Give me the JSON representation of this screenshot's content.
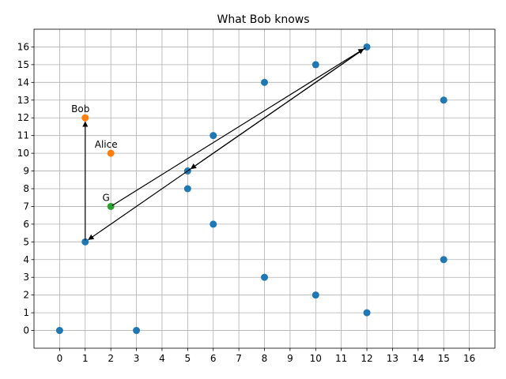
{
  "chart_data": {
    "type": "scatter",
    "title": "What Bob knows",
    "xlabel": "",
    "ylabel": "",
    "xlim": [
      -1,
      17
    ],
    "ylim": [
      -1,
      17
    ],
    "x_ticks": [
      0,
      1,
      2,
      3,
      4,
      5,
      6,
      7,
      8,
      9,
      10,
      11,
      12,
      13,
      14,
      15,
      16
    ],
    "y_ticks": [
      0,
      1,
      2,
      3,
      4,
      5,
      6,
      7,
      8,
      9,
      10,
      11,
      12,
      13,
      14,
      15,
      16
    ],
    "grid": true,
    "colors": {
      "blue": "#1f77b4",
      "orange": "#ff7f0e",
      "green": "#2ca02c",
      "grid": "#b0b0b0"
    },
    "series": [
      {
        "color": "#1f77b4",
        "points": [
          [
            0,
            0
          ],
          [
            3,
            0
          ],
          [
            12,
            1
          ],
          [
            10,
            2
          ],
          [
            8,
            3
          ],
          [
            15,
            4
          ],
          [
            1,
            5
          ],
          [
            6,
            6
          ],
          [
            5,
            8
          ],
          [
            5,
            9
          ],
          [
            6,
            11
          ],
          [
            15,
            13
          ],
          [
            8,
            14
          ],
          [
            10,
            15
          ],
          [
            12,
            16
          ]
        ]
      },
      {
        "color": "#ff7f0e",
        "points": [
          [
            1,
            12
          ],
          [
            2,
            10
          ]
        ]
      },
      {
        "color": "#2ca02c",
        "points": [
          [
            2,
            7
          ]
        ]
      }
    ],
    "annotations": [
      {
        "text": "Bob",
        "x": 1,
        "y": 12
      },
      {
        "text": "Alice",
        "x": 2,
        "y": 10
      },
      {
        "text": "G",
        "x": 2,
        "y": 7
      }
    ],
    "arrows": [
      {
        "from": [
          2,
          7
        ],
        "to": [
          12,
          16
        ]
      },
      {
        "from": [
          12,
          16
        ],
        "to": [
          5,
          9
        ]
      },
      {
        "from": [
          12,
          16
        ],
        "to": [
          1,
          5
        ]
      },
      {
        "from": [
          1,
          5
        ],
        "to": [
          1,
          12
        ]
      }
    ]
  }
}
